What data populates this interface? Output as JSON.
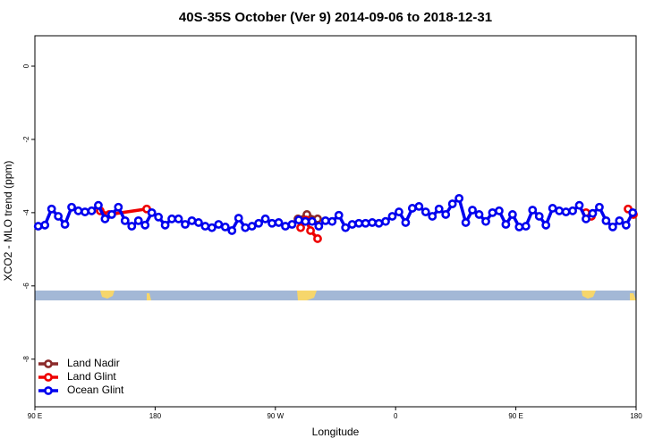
{
  "chart_data": {
    "type": "line",
    "title": "40S-35S October (Ver 9)   2014-09-06 to 2018-12-31",
    "xlabel": "Longitude",
    "ylabel": "XCO2 - MLO trend (ppm)",
    "xlim": [
      90,
      540
    ],
    "xticks": [
      {
        "value": 90,
        "label": "90 E"
      },
      180,
      {
        "value": 270,
        "label": "90 W"
      },
      {
        "value": 360,
        "label": "0"
      },
      {
        "value": 450,
        "label": "90 E"
      },
      {
        "value": 540,
        "label": "180"
      }
    ],
    "ylim": [
      -9.3,
      0.83
    ],
    "yticks": [
      0,
      -2,
      -4,
      -6,
      -8
    ],
    "legend": "bottom-left",
    "series": [
      {
        "name": "Land Nadir",
        "color": "#8b2a2a",
        "x": [
          286.9,
          293.6,
          301.6
        ],
        "values": [
          -4.17,
          -4.05,
          -4.17
        ]
      },
      {
        "name": "Land Glint",
        "color": "#ee0000",
        "x": [
          138.9,
          145.6,
          173.7,
          null,
          288.9,
          292.9,
          296.3,
          301.6,
          null,
          502.5,
          506.5,
          null,
          534,
          538
        ],
        "values": [
          -3.95,
          -4.05,
          -3.9,
          null,
          -4.41,
          -4.2,
          -4.49,
          -4.71,
          null,
          -4.0,
          -4.1,
          null,
          -3.9,
          -4.05
        ]
      },
      {
        "name": "Ocean Glint",
        "color": "#0000ee",
        "x": [
          92.5,
          97.5,
          102.5,
          107.5,
          112.5,
          117.5,
          122.5,
          127.5,
          132.5,
          137.5,
          142.5,
          147.5,
          152.5,
          157.5,
          162.5,
          167.5,
          172.5,
          177.5,
          182.5,
          187.5,
          192.5,
          197.5,
          202.5,
          207.5,
          212.5,
          217.5,
          222.5,
          227.5,
          232.5,
          237.5,
          242.5,
          247.5,
          252.5,
          257.5,
          262.5,
          267.5,
          272.5,
          277.5,
          282.5,
          287.5,
          292.5,
          297.5,
          302.5,
          307.5,
          312.5,
          317.5,
          322.5,
          327.5,
          332.5,
          337.5,
          342.5,
          347.5,
          352.5,
          357.5,
          362.5,
          367.5,
          372.5,
          377.5,
          382.5,
          387.5,
          392.5,
          397.5,
          402.5,
          407.5,
          412.5,
          417.5,
          422.5,
          427.5,
          432.5,
          437.5,
          442.5,
          447.5,
          452.5,
          457.5,
          462.5,
          467.5,
          472.5,
          477.5,
          482.5,
          487.5,
          492.5,
          497.5,
          502.5,
          507.5,
          512.5,
          517.5,
          522.5,
          527.5,
          532.5,
          537.5
        ],
        "values": [
          -4.37,
          -4.34,
          -3.9,
          -4.1,
          -4.32,
          -3.85,
          -3.95,
          -3.98,
          -3.95,
          -3.8,
          -4.17,
          -4.05,
          -3.85,
          -4.22,
          -4.37,
          -4.22,
          -4.34,
          -4.0,
          -4.12,
          -4.34,
          -4.17,
          -4.17,
          -4.32,
          -4.22,
          -4.27,
          -4.37,
          -4.41,
          -4.32,
          -4.39,
          -4.49,
          -4.15,
          -4.41,
          -4.37,
          -4.29,
          -4.17,
          -4.29,
          -4.27,
          -4.37,
          -4.32,
          -4.2,
          -4.24,
          -4.24,
          -4.37,
          -4.22,
          -4.24,
          -4.07,
          -4.41,
          -4.32,
          -4.29,
          -4.29,
          -4.27,
          -4.29,
          -4.24,
          -4.1,
          -3.98,
          -4.27,
          -3.88,
          -3.83,
          -3.98,
          -4.1,
          -3.9,
          -4.05,
          -3.76,
          -3.61,
          -4.27,
          -3.93,
          -4.05,
          -4.24,
          -4.0,
          -3.95,
          -4.32,
          -4.05,
          -4.39,
          -4.37,
          -3.93,
          -4.1,
          -4.34,
          -3.88,
          -3.95,
          -3.98,
          -3.95,
          -3.8,
          -4.17,
          -4.02,
          -3.85,
          -4.22,
          -4.39,
          -4.22,
          -4.34,
          -4.0
        ]
      }
    ]
  }
}
